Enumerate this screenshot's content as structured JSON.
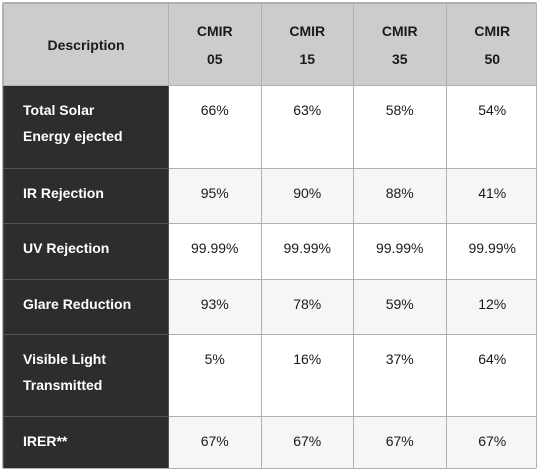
{
  "table": {
    "header": {
      "description": "Description",
      "columns": [
        {
          "line1": "CMIR",
          "line2": "05"
        },
        {
          "line1": "CMIR",
          "line2": "15"
        },
        {
          "line1": "CMIR",
          "line2": "35"
        },
        {
          "line1": "CMIR",
          "line2": "50"
        }
      ]
    },
    "rows": [
      {
        "label_line1": "Total Solar",
        "label_line2": "Energy ejected",
        "values": [
          "66%",
          "63%",
          "58%",
          "54%"
        ]
      },
      {
        "label_line1": "IR Rejection",
        "label_line2": "",
        "values": [
          "95%",
          "90%",
          "88%",
          "41%"
        ]
      },
      {
        "label_line1": "UV Rejection",
        "label_line2": "",
        "values": [
          "99.99%",
          "99.99%",
          "99.99%",
          "99.99%"
        ]
      },
      {
        "label_line1": "Glare Reduction",
        "label_line2": "",
        "values": [
          "93%",
          "78%",
          "59%",
          "12%"
        ]
      },
      {
        "label_line1": "Visible Light",
        "label_line2": "Transmitted",
        "values": [
          "5%",
          "16%",
          "37%",
          "64%"
        ]
      },
      {
        "label_line1": "IRER**",
        "label_line2": "",
        "values": [
          "67%",
          "67%",
          "67%",
          "67%"
        ]
      }
    ]
  }
}
